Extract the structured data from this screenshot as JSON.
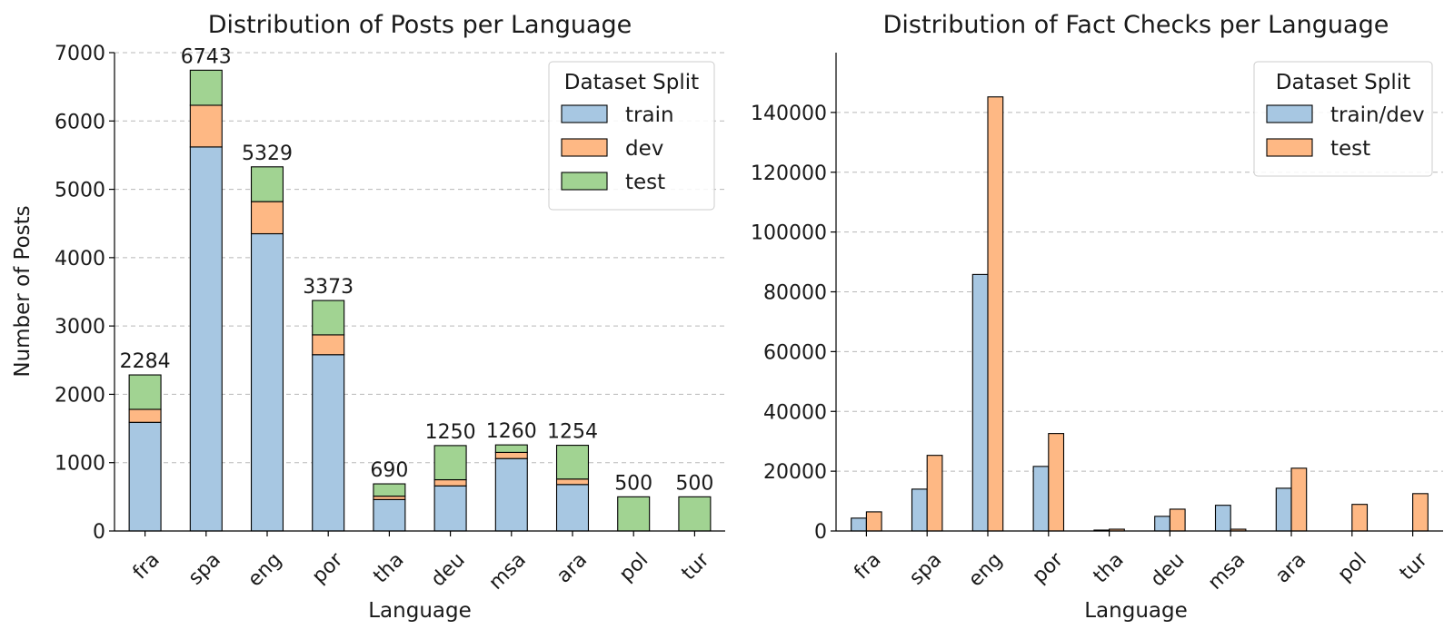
{
  "colors": {
    "train": "#a7c7e2",
    "dev": "#feb884",
    "test": "#a1d392"
  },
  "chart_data": [
    {
      "type": "bar",
      "stacked": true,
      "title": "Distribution of Posts per Language",
      "xlabel": "Language",
      "ylabel": "Number of Posts",
      "ylim": [
        0,
        7000
      ],
      "yticks": [
        0,
        1000,
        2000,
        3000,
        4000,
        5000,
        6000,
        7000
      ],
      "grid": "y-dashed",
      "legend_title": "Dataset Split",
      "legend_position": "top-right",
      "categories": [
        "fra",
        "spa",
        "eng",
        "por",
        "tha",
        "deu",
        "msa",
        "ara",
        "pol",
        "tur"
      ],
      "series": [
        {
          "name": "train",
          "color": "#a7c7e2",
          "values": [
            1590,
            5620,
            4350,
            2580,
            460,
            660,
            1060,
            680,
            0,
            0
          ]
        },
        {
          "name": "dev",
          "color": "#feb884",
          "values": [
            190,
            610,
            470,
            290,
            50,
            90,
            90,
            80,
            0,
            0
          ]
        },
        {
          "name": "test",
          "color": "#a1d392",
          "values": [
            504,
            513,
            509,
            503,
            180,
            500,
            110,
            494,
            500,
            500
          ]
        }
      ],
      "totals": [
        2284,
        6743,
        5329,
        3373,
        690,
        1250,
        1260,
        1254,
        500,
        500
      ]
    },
    {
      "type": "bar",
      "grouped": true,
      "title": "Distribution of Fact Checks per Language",
      "xlabel": "Language",
      "ylabel": "",
      "ylim": [
        0,
        160000
      ],
      "yticks": [
        0,
        20000,
        40000,
        60000,
        80000,
        100000,
        120000,
        140000
      ],
      "grid": "y-dashed",
      "legend_title": "Dataset Split",
      "legend_position": "top-right",
      "categories": [
        "fra",
        "spa",
        "eng",
        "por",
        "tha",
        "deu",
        "msa",
        "ara",
        "pol",
        "tur"
      ],
      "series": [
        {
          "name": "train/dev",
          "color": "#a7c7e2",
          "values": [
            4300,
            14000,
            85800,
            21600,
            300,
            4900,
            8600,
            14300,
            0,
            0
          ]
        },
        {
          "name": "test",
          "color": "#feb884",
          "values": [
            6400,
            25300,
            145200,
            32600,
            600,
            7300,
            600,
            21000,
            8900,
            12500
          ]
        }
      ]
    }
  ]
}
